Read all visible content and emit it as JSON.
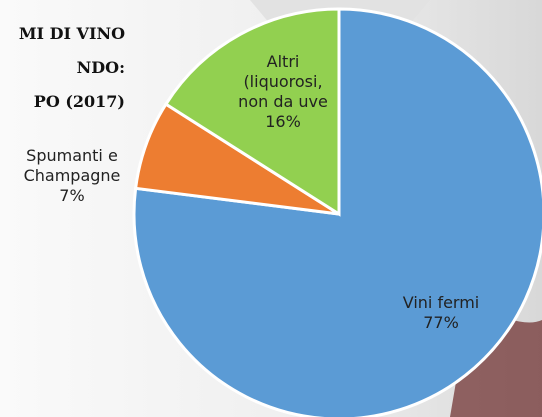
{
  "chart_data": {
    "type": "pie",
    "title_lines": [
      "MI DI VINO",
      "NDO:",
      "PO (2017)"
    ],
    "categories": [
      "Vini fermi",
      "Spumanti e Champagne",
      "Altri (liquorosi, non da uve"
    ],
    "values": [
      77,
      7,
      16
    ],
    "value_labels": [
      "77%",
      "7%",
      "16%"
    ],
    "colors": [
      "#5b9bd5",
      "#ed7d31",
      "#92d050"
    ]
  }
}
